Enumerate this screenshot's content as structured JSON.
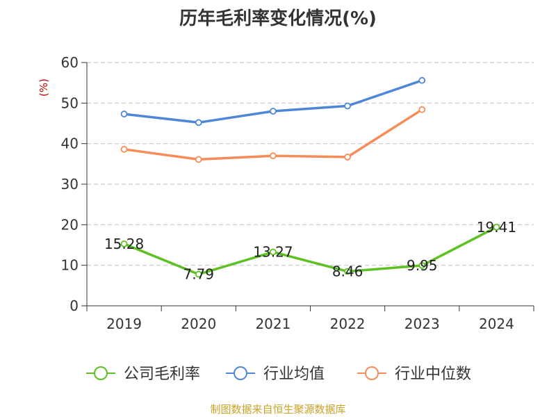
{
  "chart_data": {
    "type": "line",
    "title": "历年毛利率变化情况(%)",
    "ylabel": "(%)",
    "xlabel": "",
    "ylim": [
      0,
      60
    ],
    "yticks": [
      "0",
      "10",
      "20",
      "30",
      "40",
      "50",
      "60"
    ],
    "categories": [
      "2019",
      "2020",
      "2021",
      "2022",
      "2023",
      "2024"
    ],
    "grid": true,
    "legend_position": "bottom",
    "series": [
      {
        "name": "公司毛利率",
        "color": "#5ec122",
        "values": [
          15.28,
          7.79,
          13.27,
          8.46,
          9.95,
          19.41
        ],
        "labels": [
          "15.28",
          "7.79",
          "13.27",
          "8.46",
          "9.95",
          "19.41"
        ]
      },
      {
        "name": "行业均值",
        "color": "#4f86d8",
        "values": [
          47.3,
          45.2,
          48.0,
          49.3,
          55.6,
          null
        ]
      },
      {
        "name": "行业中位数",
        "color": "#f78c5a",
        "values": [
          38.6,
          36.1,
          37.0,
          36.7,
          48.4,
          null
        ]
      }
    ]
  },
  "footer": {
    "source": "制图数据来自恒生聚源数据库"
  }
}
